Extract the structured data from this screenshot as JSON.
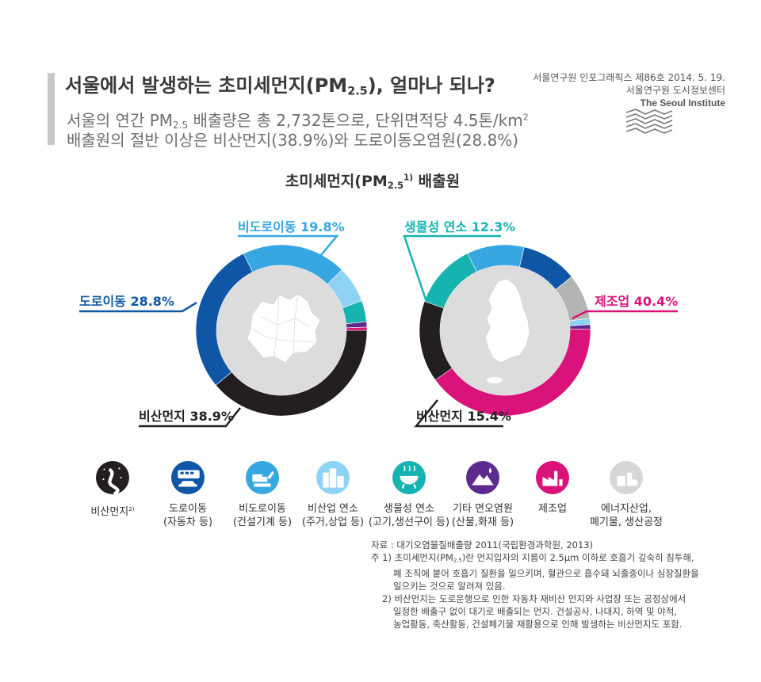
{
  "header": {
    "title_main": "서울에서 발생하는 초미세먼지(PM",
    "title_sub": "2.5",
    "title_end": "), 얼마나 되나?",
    "line1_a": "서울의 연간 PM",
    "line1_sub": "2.5",
    "line1_b": " 배출량은 총 2,732톤으로, 단위면적당 4.5톤/km",
    "line1_sup": "2",
    "line2": "배출원의 절반 이상은 비산먼지(38.9%)와 도로이동오염원(28.8%)"
  },
  "publisher": {
    "series": "서울연구원 인포그래픽스 제86호 2014. 5. 19.",
    "org": "서울연구원 도시정보센터",
    "org_en": "The Seoul Institute"
  },
  "chart_heading": {
    "main": "초미세먼지(PM",
    "sub": "2.5",
    "sup": "1)",
    "end": " 배출원"
  },
  "chart_data": [
    {
      "type": "pie",
      "title": "",
      "slices": [
        {
          "name": "비산먼지",
          "value": 38.9,
          "color": "#231f20",
          "label": "비산먼지 38.9%"
        },
        {
          "name": "도로이동",
          "value": 28.8,
          "color": "#0f57a6",
          "label": "도로이동 28.8%"
        },
        {
          "name": "비도로이동",
          "value": 19.8,
          "color": "#36a7e0",
          "label": "비도로이동 19.8%"
        },
        {
          "name": "비산업 연소",
          "value": 6.9,
          "color": "#8fd3f4"
        },
        {
          "name": "생물성 연소",
          "value": 4.0,
          "color": "#16b3b0"
        },
        {
          "name": "기타 면오염원",
          "value": 1.0,
          "color": "#5d2a8f"
        },
        {
          "name": "제조업",
          "value": 0.6,
          "color": "#d9137a"
        }
      ]
    },
    {
      "type": "pie",
      "title": "",
      "slices": [
        {
          "name": "제조업",
          "value": 40.4,
          "color": "#d9137a",
          "label": "제조업 40.4%"
        },
        {
          "name": "비산먼지",
          "value": 15.4,
          "color": "#231f20",
          "label": "비산먼지 15.4%"
        },
        {
          "name": "생물성 연소",
          "value": 12.3,
          "color": "#16b3b0",
          "label": "생물성 연소 12.3%"
        },
        {
          "name": "비도로이동",
          "value": 10.8,
          "color": "#36a7e0"
        },
        {
          "name": "도로이동",
          "value": 10.6,
          "color": "#0f57a6"
        },
        {
          "name": "에너지산업, 폐기물, 생산공정",
          "value": 8.5,
          "color": "#b4b4b4"
        },
        {
          "name": "비산업 연소",
          "value": 1.2,
          "color": "#8fd3f4"
        },
        {
          "name": "기타 면오염원",
          "value": 0.8,
          "color": "#5d2a8f"
        }
      ]
    }
  ],
  "legend": [
    {
      "icon": "dust-road-icon",
      "color": "#231f20",
      "line1": "비산먼지",
      "sup": "2)",
      "line2": ""
    },
    {
      "icon": "bus-car-icon",
      "color": "#0f57a6",
      "line1": "도로이동",
      "sup": "",
      "line2": "(자동차 등)"
    },
    {
      "icon": "excavator-truck-icon",
      "color": "#36a7e0",
      "line1": "비도로이동",
      "sup": "",
      "line2": "(건설기계 등)"
    },
    {
      "icon": "buildings-icon",
      "color": "#8fd3f4",
      "line1": "비산업 연소",
      "sup": "",
      "line2": "(주거,상업 등)"
    },
    {
      "icon": "grill-icon",
      "color": "#16b3b0",
      "line1": "생물성 연소",
      "sup": "",
      "line2": "(고기,생선구이 등)"
    },
    {
      "icon": "mountain-fire-icon",
      "color": "#5d2a8f",
      "line1": "기타 면오염원",
      "sup": "",
      "line2": "(산불,화재 등)"
    },
    {
      "icon": "factory-icon",
      "color": "#d9137a",
      "line1": "제조업",
      "sup": "",
      "line2": ""
    },
    {
      "icon": "energy-waste-icon",
      "color": "#d6d6d6",
      "line1": "에너지산업,",
      "sup": "",
      "line2": "폐기물, 생산공정"
    }
  ],
  "notes": {
    "source": "자료 : 대기오염물질배출량 2011(국립환경과학원, 2013)",
    "n1_a": "주 1) 초미세먼지(PM",
    "n1_sub": "2.5",
    "n1_b": ")란 먼지입자의 지름이 2.5μm  이하로 호흡기 깊숙히 침투해,",
    "n1_l2": "폐 조직에 붙어 호흡기 질환을 일으키며, 혈관으로 흡수돼 뇌졸중이나 심장질환을",
    "n1_l3": "일으키는 것으로 알려져 있음.",
    "n2_l1": "2) 비산먼지는 도로운행으로 인한 자동차 재비산 먼지와 사업장 또는 공정상에서",
    "n2_l2": "일정한 배출구 없이 대기로 배출되는 먼지. 건설공사, 나대지, 하역 및 야적,",
    "n2_l3": "농업활동, 축산활동, 건설폐기물 재활용으로 인해 발생하는 비산먼지도 포함."
  }
}
